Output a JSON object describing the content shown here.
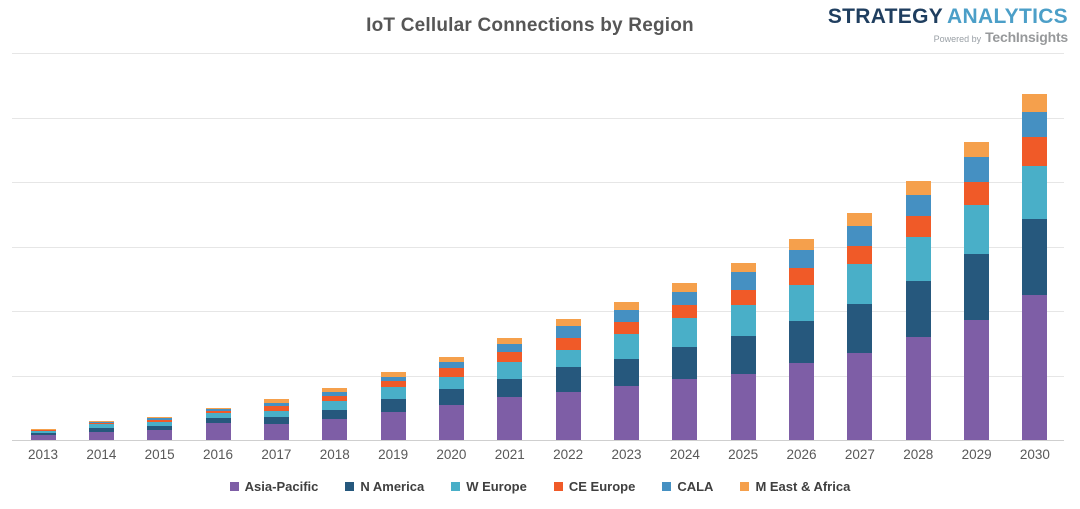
{
  "header": {
    "title": "IoT Cellular Connections by Region",
    "logo": {
      "part1": "STRATEGY",
      "part2": "ANALYTICS",
      "powered_by": "Powered by",
      "powered_brand": "TechInsights"
    }
  },
  "colors": {
    "title_text": "#565656",
    "axis_label": "#595959",
    "gridline": "#e6e6e6",
    "baseline": "#cfcfcf",
    "legend_text": "#3f3f3f",
    "logo_dark": "#1f3e5f",
    "logo_light": "#4c9fc8",
    "powered_text": "#9aa0a6"
  },
  "chart_data": {
    "type": "bar",
    "stacked": true,
    "title": "IoT Cellular Connections by Region",
    "categories": [
      "2013",
      "2014",
      "2015",
      "2016",
      "2017",
      "2018",
      "2019",
      "2020",
      "2021",
      "2022",
      "2023",
      "2024",
      "2025",
      "2026",
      "2027",
      "2028",
      "2029",
      "2030"
    ],
    "xlabel": "",
    "ylabel": "",
    "y_axis_labels_visible": false,
    "value_unit": "gridline units (y-axis unlabeled, estimated)",
    "ylim": [
      0,
      6
    ],
    "gridline_interval": 1,
    "grid": true,
    "legend_position": "bottom",
    "series": [
      {
        "name": "Asia-Pacific",
        "color": "#7e5ea6",
        "values": [
          0.07,
          0.13,
          0.16,
          0.26,
          0.25,
          0.32,
          0.44,
          0.54,
          0.66,
          0.75,
          0.83,
          0.95,
          1.02,
          1.19,
          1.35,
          1.6,
          1.86,
          2.25
        ]
      },
      {
        "name": "N America",
        "color": "#26587d",
        "values": [
          0.04,
          0.05,
          0.05,
          0.08,
          0.1,
          0.14,
          0.19,
          0.25,
          0.29,
          0.38,
          0.43,
          0.49,
          0.59,
          0.65,
          0.76,
          0.86,
          1.03,
          1.18
        ]
      },
      {
        "name": "W Europe",
        "color": "#49afc8",
        "values": [
          0.03,
          0.06,
          0.07,
          0.08,
          0.1,
          0.14,
          0.19,
          0.19,
          0.26,
          0.26,
          0.39,
          0.45,
          0.48,
          0.56,
          0.62,
          0.68,
          0.75,
          0.82
        ]
      },
      {
        "name": "CE Europe",
        "color": "#f05a28",
        "values": [
          0.01,
          0.02,
          0.03,
          0.03,
          0.07,
          0.08,
          0.09,
          0.13,
          0.15,
          0.19,
          0.18,
          0.21,
          0.24,
          0.26,
          0.27,
          0.34,
          0.36,
          0.44
        ]
      },
      {
        "name": "CALA",
        "color": "#4590c2",
        "values": [
          0.01,
          0.02,
          0.025,
          0.025,
          0.05,
          0.06,
          0.07,
          0.1,
          0.13,
          0.18,
          0.19,
          0.19,
          0.27,
          0.28,
          0.31,
          0.32,
          0.39,
          0.4
        ]
      },
      {
        "name": "M East & Africa",
        "color": "#f5a04c",
        "values": [
          0.005,
          0.01,
          0.015,
          0.02,
          0.06,
          0.07,
          0.08,
          0.07,
          0.09,
          0.11,
          0.12,
          0.14,
          0.14,
          0.17,
          0.21,
          0.22,
          0.23,
          0.27
        ]
      }
    ]
  }
}
